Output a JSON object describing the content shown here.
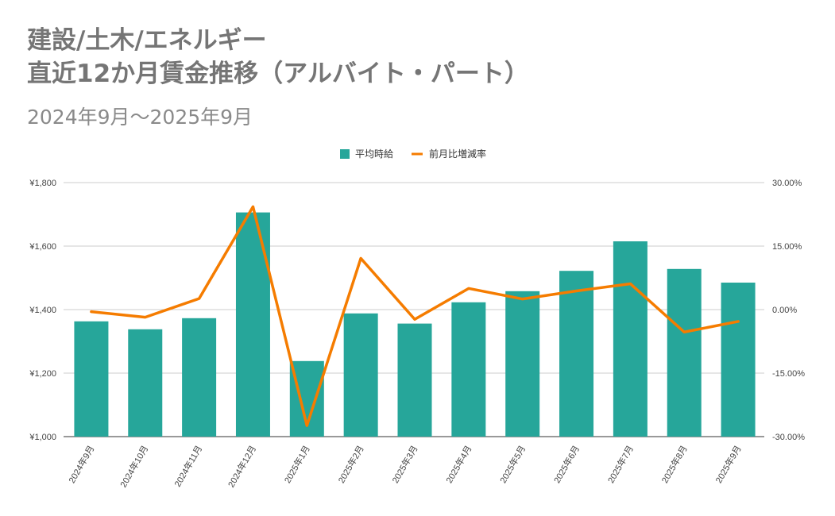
{
  "chart_data": {
    "type": "bar",
    "title_line1": "建設/土木/エネルギー",
    "title_line2": "直近12か月賃金推移（アルバイト・パート）",
    "subtitle": "2024年9月～2025年9月",
    "categories": [
      "2024年9月",
      "2024年10月",
      "2024年11月",
      "2024年12月",
      "2025年1月",
      "2025年2月",
      "2025年3月",
      "2025年4月",
      "2025年5月",
      "2025年6月",
      "2025年7月",
      "2025年8月",
      "2025年9月"
    ],
    "series": [
      {
        "name": "平均時給",
        "type": "bar",
        "axis": "left",
        "color": "#26a69a",
        "values": [
          1363,
          1338,
          1373,
          1706,
          1238,
          1388,
          1356,
          1423,
          1458,
          1522,
          1615,
          1528,
          1485
        ]
      },
      {
        "name": "前月比増減率",
        "type": "line",
        "axis": "right",
        "color": "#f57c00",
        "values": [
          -0.5,
          -1.8,
          2.6,
          24.3,
          -27.4,
          12.1,
          -2.3,
          5.0,
          2.5,
          4.4,
          6.1,
          -5.3,
          -2.8
        ]
      }
    ],
    "y_left": {
      "min": 1000,
      "max": 1800,
      "ticks": [
        1000,
        1200,
        1400,
        1600,
        1800
      ],
      "tick_labels": [
        "¥1,000",
        "¥1,200",
        "¥1,400",
        "¥1,600",
        "¥1,800"
      ]
    },
    "y_right": {
      "min": -30,
      "max": 30,
      "ticks": [
        -30,
        -15,
        0,
        15,
        30
      ],
      "tick_labels": [
        "-30.00%",
        "-15.00%",
        "0.00%",
        "15.00%",
        "30.00%"
      ]
    },
    "legend_position": "top-center",
    "grid": true
  }
}
